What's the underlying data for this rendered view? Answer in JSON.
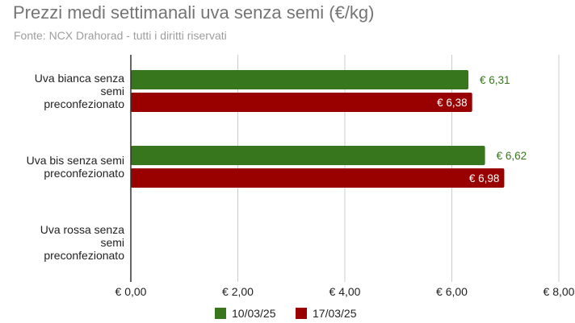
{
  "title": "Prezzi medi settimanali uva senza semi (€/kg)",
  "subtitle": "Fonte: NCX Drahorad - tutti i diritti riservati",
  "chart_data": {
    "type": "bar",
    "orientation": "horizontal",
    "categories": [
      [
        "Uva bianca senza",
        "semi",
        "preconfezionato"
      ],
      [
        "Uva bis senza semi",
        "preconfezionato"
      ],
      [
        "Uva rossa senza",
        "semi",
        "preconfezionato"
      ]
    ],
    "series": [
      {
        "name": "10/03/25",
        "color": "#38761d",
        "values": [
          6.31,
          6.62,
          null
        ],
        "labels": [
          "€ 6,31",
          "€ 6,62",
          ""
        ],
        "label_position": "outside"
      },
      {
        "name": "17/03/25",
        "color": "#990000",
        "values": [
          6.38,
          6.98,
          null
        ],
        "labels": [
          "€ 6,38",
          "€ 6,98",
          ""
        ],
        "label_position": "inside"
      }
    ],
    "xlim": [
      0,
      8
    ],
    "xticks": [
      0,
      2,
      4,
      6,
      8
    ],
    "xtick_labels": [
      "€ 0,00",
      "€ 2,00",
      "€ 4,00",
      "€ 6,00",
      "€ 8,00"
    ],
    "grid": "vertical",
    "legend": "bottom"
  }
}
